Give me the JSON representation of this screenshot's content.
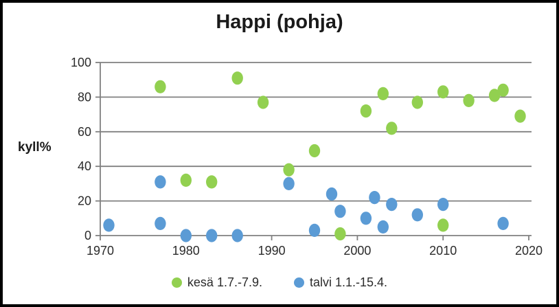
{
  "chart_data": {
    "type": "scatter",
    "title": "Happi (pohja)",
    "xlabel": "",
    "ylabel": "kyll%",
    "xlim": [
      1970,
      2020
    ],
    "ylim": [
      0,
      100
    ],
    "x_ticks": [
      1970,
      1980,
      1990,
      2000,
      2010,
      2020
    ],
    "y_ticks": [
      0,
      20,
      40,
      60,
      80,
      100
    ],
    "grid": "horizontal",
    "legend_position": "bottom",
    "series": [
      {
        "name": "kesä 1.7.-7.9.",
        "color": "#92d050",
        "points": [
          [
            1977,
            86
          ],
          [
            1980,
            32
          ],
          [
            1983,
            31
          ],
          [
            1986,
            91
          ],
          [
            1989,
            77
          ],
          [
            1992,
            38
          ],
          [
            1995,
            49
          ],
          [
            1998,
            1
          ],
          [
            2001,
            72
          ],
          [
            2003,
            82
          ],
          [
            2004,
            62
          ],
          [
            2007,
            77
          ],
          [
            2010,
            83
          ],
          [
            2010,
            6
          ],
          [
            2013,
            78
          ],
          [
            2016,
            81
          ],
          [
            2017,
            84
          ],
          [
            2019,
            69
          ]
        ]
      },
      {
        "name": "talvi 1.1.-15.4.",
        "color": "#5b9bd5",
        "points": [
          [
            1971,
            6
          ],
          [
            1977,
            31
          ],
          [
            1977,
            7
          ],
          [
            1980,
            0
          ],
          [
            1983,
            0
          ],
          [
            1986,
            0
          ],
          [
            1992,
            30
          ],
          [
            1995,
            3
          ],
          [
            1997,
            24
          ],
          [
            1998,
            14
          ],
          [
            2001,
            10
          ],
          [
            2002,
            22
          ],
          [
            2003,
            5
          ],
          [
            2004,
            18
          ],
          [
            2007,
            12
          ],
          [
            2010,
            18
          ],
          [
            2017,
            7
          ]
        ]
      }
    ],
    "colors": {
      "grid": "#808080",
      "axis": "#808080",
      "tick_text": "#2b2b2b",
      "border": "#000000"
    }
  }
}
